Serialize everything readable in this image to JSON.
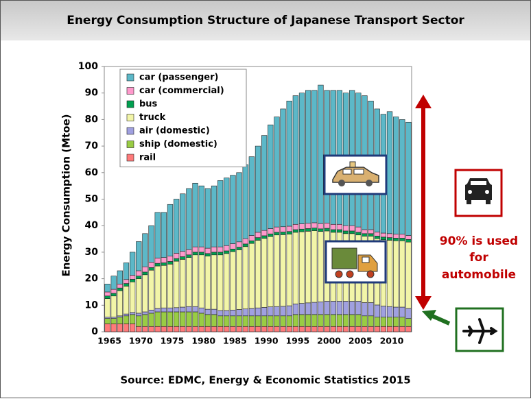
{
  "header": {
    "title": "Energy Consumption Structure of Japanese Transport Sector"
  },
  "chart_data": {
    "type": "stacked-bar",
    "y_label": "Energy Consumption (Mtoe)",
    "categories": [
      1965,
      null,
      null,
      null,
      null,
      1970,
      null,
      null,
      null,
      null,
      1975,
      null,
      null,
      null,
      null,
      1980,
      null,
      null,
      null,
      null,
      1985,
      null,
      null,
      null,
      null,
      1990,
      null,
      null,
      null,
      null,
      1995,
      null,
      null,
      null,
      null,
      2000,
      null,
      null,
      null,
      null,
      2005,
      null,
      null,
      null,
      null,
      2010,
      null,
      null,
      null
    ],
    "series": [
      {
        "name": "rail",
        "color": "#ff7a7a",
        "values": [
          3,
          3,
          3,
          3,
          3,
          2,
          2,
          2,
          2,
          2,
          2,
          2,
          2,
          2,
          2,
          2,
          2,
          2,
          2,
          2,
          2,
          2,
          2,
          2,
          2,
          2,
          2,
          2,
          2,
          2,
          2,
          2,
          2,
          2,
          2,
          2,
          2,
          2,
          2,
          2,
          2,
          2,
          2,
          2,
          2,
          2,
          2,
          2,
          2
        ]
      },
      {
        "name": "ship (domestic)",
        "color": "#99cc44",
        "values": [
          2,
          2,
          2.5,
          3,
          3.5,
          4,
          4.5,
          5,
          5.5,
          5.5,
          5.5,
          5.5,
          5.5,
          5.5,
          5.5,
          5,
          4.5,
          4.5,
          4,
          4,
          4,
          4,
          4,
          4,
          4,
          4,
          4,
          4,
          4,
          4,
          4.5,
          4.5,
          4.5,
          4.5,
          4.5,
          4.5,
          4.5,
          4.5,
          4.5,
          4.5,
          4.5,
          4,
          4,
          3.5,
          3.5,
          3.5,
          3.5,
          3.5,
          3
        ]
      },
      {
        "name": "air (domestic)",
        "color": "#a0a0e0",
        "values": [
          0.5,
          0.5,
          0.5,
          0.7,
          0.8,
          1,
          1,
          1.2,
          1.3,
          1.5,
          1.5,
          1.6,
          1.8,
          2,
          2,
          2,
          2,
          2,
          2,
          2,
          2.2,
          2.4,
          2.6,
          2.8,
          3,
          3.2,
          3.4,
          3.5,
          3.6,
          3.8,
          4,
          4.2,
          4.4,
          4.6,
          4.8,
          5,
          5,
          5,
          5,
          5,
          5,
          5,
          5,
          4.6,
          4.2,
          4,
          3.8,
          3.8,
          3.8
        ]
      },
      {
        "name": "truck",
        "color": "#f2f5a8",
        "values": [
          7,
          8,
          9.5,
          10.5,
          11.5,
          13,
          14,
          15,
          16,
          16,
          16.5,
          17.5,
          18,
          18.5,
          19.5,
          20,
          20,
          20.5,
          21,
          21.5,
          22,
          22.5,
          23.5,
          24.5,
          25.5,
          26,
          26.5,
          27,
          27,
          27,
          27,
          27,
          27,
          27,
          26.5,
          26.5,
          26,
          26,
          25.5,
          25.5,
          25,
          25,
          25,
          25,
          25,
          25,
          25,
          25,
          25
        ]
      },
      {
        "name": "bus",
        "color": "#00a050",
        "values": [
          1,
          1,
          1,
          1,
          1,
          1,
          1,
          1,
          1,
          1,
          1,
          1,
          1,
          1,
          1,
          1,
          1,
          1,
          1,
          1,
          1,
          1,
          1,
          1,
          1,
          1,
          1,
          1,
          1,
          1,
          1,
          1,
          1,
          1,
          1,
          1,
          1,
          1,
          1,
          1,
          1,
          1,
          1,
          1,
          1,
          1,
          1,
          1,
          1
        ]
      },
      {
        "name": "car (commercial)",
        "color": "#ff99cc",
        "values": [
          1.5,
          1.5,
          1.5,
          1.5,
          1.5,
          2,
          2,
          2,
          2,
          2,
          2,
          2,
          2,
          2,
          2,
          2,
          2,
          2,
          2,
          2,
          2,
          2,
          2,
          2,
          2,
          2,
          2,
          2,
          2,
          2,
          2,
          2,
          2,
          2,
          2,
          2,
          2,
          2,
          2,
          2,
          2,
          1.5,
          1.5,
          1.5,
          1.5,
          1.5,
          1.5,
          1.5,
          1.5
        ]
      },
      {
        "name": "car (passenger)",
        "color": "#5cb8c8",
        "values": [
          3,
          5,
          5,
          6.3,
          8.7,
          11,
          12.5,
          13.8,
          17.2,
          17,
          19.5,
          20.4,
          21.7,
          23,
          24,
          23,
          22.5,
          23,
          25,
          25.5,
          25.8,
          26.1,
          27.9,
          29.7,
          32.5,
          35.8,
          39.1,
          41.5,
          44.4,
          47.2,
          48.5,
          49.3,
          50.1,
          49.9,
          52.2,
          50,
          50.5,
          50.5,
          50,
          51,
          50.5,
          50.5,
          48.5,
          46.4,
          44.8,
          46,
          44.2,
          43.2,
          42.7
        ]
      }
    ],
    "ylim": [
      0,
      100
    ],
    "yticks": [
      0,
      10,
      20,
      30,
      40,
      50,
      60,
      70,
      80,
      90,
      100
    ],
    "legend": "upper left",
    "annotation": [
      "90% is used",
      "for",
      "automobile"
    ]
  },
  "footer": {
    "source": "Source: EDMC, Energy & Economic Statistics 2015"
  }
}
